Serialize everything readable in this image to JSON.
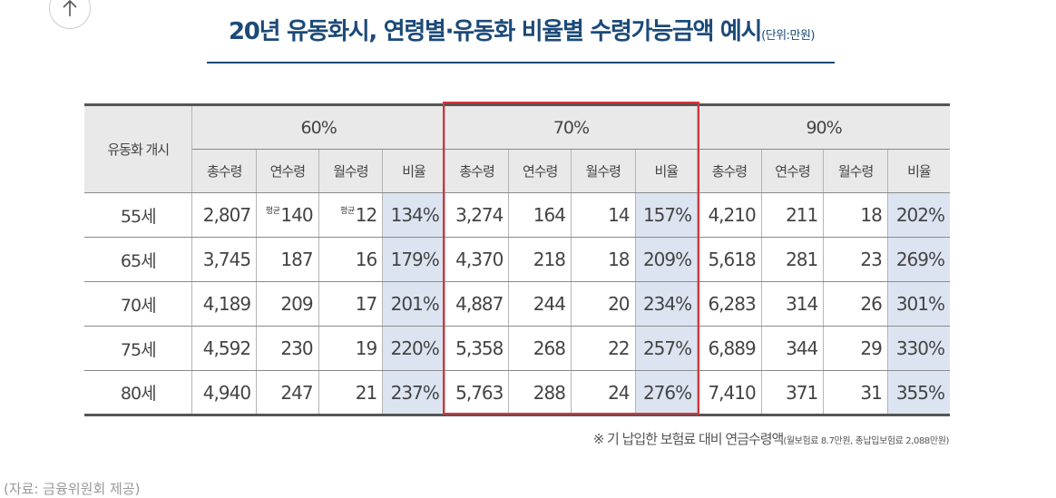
{
  "title": {
    "main": "20년 유동화시, 연령별·유동화 비율별 수령가능금액 예시",
    "unit": "(단위:만원)"
  },
  "table": {
    "row_header": "유동화 개시",
    "groups": [
      "60%",
      "70%",
      "90%"
    ],
    "subheaders": [
      "총수령",
      "연수령",
      "월수령",
      "비율"
    ],
    "rows": [
      {
        "age": "55세",
        "values": [
          [
            "2,807",
            "140",
            "12",
            "134%"
          ],
          [
            "3,274",
            "164",
            "14",
            "157%"
          ],
          [
            "4,210",
            "211",
            "18",
            "202%"
          ]
        ]
      },
      {
        "age": "65세",
        "values": [
          [
            "3,745",
            "187",
            "16",
            "179%"
          ],
          [
            "4,370",
            "218",
            "18",
            "209%"
          ],
          [
            "5,618",
            "281",
            "23",
            "269%"
          ]
        ]
      },
      {
        "age": "70세",
        "values": [
          [
            "4,189",
            "209",
            "17",
            "201%"
          ],
          [
            "4,887",
            "244",
            "20",
            "234%"
          ],
          [
            "6,283",
            "314",
            "26",
            "301%"
          ]
        ]
      },
      {
        "age": "75세",
        "values": [
          [
            "4,592",
            "230",
            "19",
            "220%"
          ],
          [
            "5,358",
            "268",
            "22",
            "257%"
          ],
          [
            "6,889",
            "344",
            "29",
            "330%"
          ]
        ]
      },
      {
        "age": "80세",
        "values": [
          [
            "4,940",
            "247",
            "21",
            "237%"
          ],
          [
            "5,763",
            "288",
            "24",
            "276%"
          ],
          [
            "7,410",
            "371",
            "31",
            "355%"
          ]
        ]
      }
    ],
    "avg_marker": "평균",
    "highlighted_group": "70%"
  },
  "note": {
    "main": "※ 기 납입한 보험료 대비 연금수령액",
    "detail": "(월보험료 8.7만원, 총납입보험료 2,088만원)"
  },
  "cutoff_text": "(자료: 금융위원회 제공)",
  "icons": {
    "scroll_top": "arrow-up-icon"
  },
  "colors": {
    "title": "#1c4a78",
    "highlight_border": "#d6343c",
    "ratio_cell": "#dde4f1",
    "header_bg": "#e9e9ea"
  }
}
